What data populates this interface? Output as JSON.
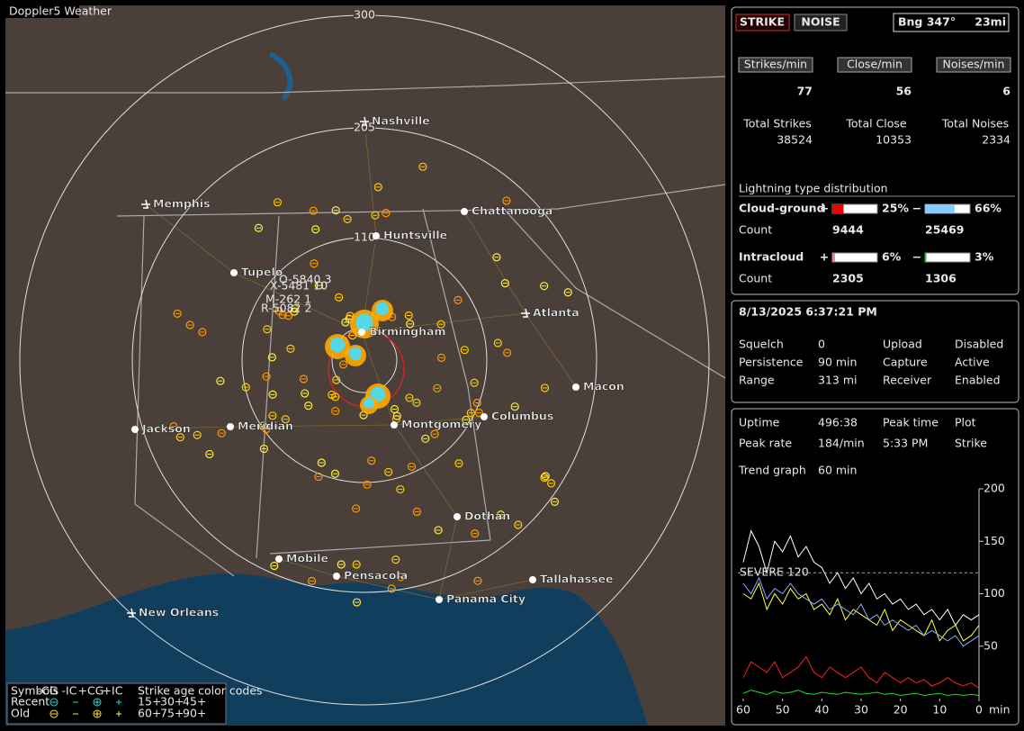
{
  "map": {
    "badge": "Doppler5 Weather",
    "ring_labels": [
      "300",
      "205",
      "110"
    ],
    "cities": [
      {
        "name": "Nashville",
        "airport": true
      },
      {
        "name": "Memphis",
        "airport": true
      },
      {
        "name": "Chattanooga",
        "airport": false
      },
      {
        "name": "Huntsville",
        "airport": false
      },
      {
        "name": "Tupelo",
        "airport": false
      },
      {
        "name": "Atlanta",
        "airport": true
      },
      {
        "name": "Birmingham",
        "airport": false
      },
      {
        "name": "Macon",
        "airport": false
      },
      {
        "name": "Columbus",
        "airport": false
      },
      {
        "name": "Jackson",
        "airport": false
      },
      {
        "name": "Meridian",
        "airport": false
      },
      {
        "name": "Montgomery",
        "airport": false
      },
      {
        "name": "Dothan",
        "airport": false
      },
      {
        "name": "Mobile",
        "airport": false
      },
      {
        "name": "Pensacola",
        "airport": false
      },
      {
        "name": "Tallahassee",
        "airport": false
      },
      {
        "name": "Panama City",
        "airport": false
      },
      {
        "name": "New Orleans",
        "airport": true
      }
    ],
    "cell_labels": [
      "O-5840 3",
      "X-5481 10",
      "M-262 1",
      "R-5082 2"
    ],
    "legend": {
      "symbols": "Symbols",
      "types": [
        "-CG",
        "-IC",
        "+CG",
        "+IC"
      ],
      "age_title": "Strike age color codes",
      "recent": "Recent",
      "old": "Old",
      "recent_ages": [
        "15+",
        "30+",
        "45+"
      ],
      "old_ages": [
        "60+",
        "75+",
        "90+"
      ],
      "recent_colors": [
        "#ffff66",
        "#ffcc00",
        "#ff9900"
      ],
      "old_colors": [
        "#ff8800",
        "#ff6600",
        "#ff4444"
      ]
    }
  },
  "status": {
    "strike_button": "STRIKE",
    "noise_button": "NOISE",
    "bearing": "Bng 347°",
    "distance": "23mi",
    "rates": [
      {
        "label": "Strikes/min",
        "value": "77",
        "total_label": "Total Strikes",
        "total": "38524"
      },
      {
        "label": "Close/min",
        "value": "56",
        "total_label": "Total Close",
        "total": "10353"
      },
      {
        "label": "Noises/min",
        "value": "6",
        "total_label": "Total Noises",
        "total": "2334"
      }
    ],
    "distribution": {
      "title": "Lightning type distribution",
      "count_label": "Count",
      "rows": [
        {
          "name": "Cloud-ground",
          "parts": [
            {
              "sign": "+",
              "value": 25,
              "value_label": "25%",
              "color": "#ee0000",
              "count": "9444"
            },
            {
              "sign": "−",
              "value": 66,
              "value_label": "66%",
              "color": "#88ccff",
              "count": "25469"
            }
          ]
        },
        {
          "name": "Intracloud",
          "parts": [
            {
              "sign": "+",
              "value": 6,
              "value_label": "6%",
              "color": "#ff77aa",
              "count": "2305"
            },
            {
              "sign": "−",
              "value": 3,
              "value_label": "3%",
              "color": "#22cc22",
              "count": "1306"
            }
          ]
        }
      ]
    }
  },
  "settings": {
    "datetime": "8/13/2025 6:37:21 PM",
    "rows": [
      {
        "label": "Squelch",
        "value": "0",
        "label2": "Upload",
        "value2": "Disabled"
      },
      {
        "label": "Persistence",
        "value": "90 min",
        "label2": "Capture",
        "value2": "Active"
      },
      {
        "label": "Range",
        "value": "313 mi",
        "label2": "Receiver",
        "value2": "Enabled"
      }
    ]
  },
  "stats": {
    "rows": [
      {
        "label": "Uptime",
        "value": "496:38",
        "label2": "Peak time",
        "value2": "Plot"
      },
      {
        "label": "Peak rate",
        "value": "184/min",
        "label2": "5:33 PM",
        "value2": "Strike"
      },
      {
        "label": "Trend graph",
        "value": "60 min"
      }
    ]
  },
  "trend": {
    "type": "line",
    "x": [
      60,
      58,
      56,
      54,
      52,
      50,
      48,
      46,
      44,
      42,
      40,
      38,
      36,
      34,
      32,
      30,
      28,
      26,
      24,
      22,
      20,
      18,
      16,
      14,
      12,
      10,
      8,
      6,
      4,
      2,
      0
    ],
    "xlim": [
      60,
      0
    ],
    "xticks": [
      60,
      50,
      40,
      30,
      20,
      10,
      0
    ],
    "x_unit": "min",
    "ylim": [
      0,
      200
    ],
    "yticks": [
      50,
      100,
      150,
      200
    ],
    "threshold": {
      "value": 120,
      "label": "SEVERE 120"
    },
    "series": [
      {
        "color": "#ffffff",
        "values": [
          130,
          160,
          145,
          120,
          150,
          140,
          155,
          135,
          145,
          130,
          125,
          110,
          120,
          105,
          115,
          100,
          110,
          95,
          100,
          90,
          95,
          85,
          90,
          80,
          85,
          75,
          85,
          70,
          80,
          75,
          80
        ]
      },
      {
        "color": "#ffff44",
        "values": [
          100,
          95,
          110,
          85,
          100,
          90,
          105,
          95,
          100,
          85,
          90,
          80,
          95,
          75,
          85,
          80,
          75,
          70,
          85,
          65,
          75,
          70,
          65,
          60,
          75,
          55,
          65,
          70,
          55,
          60,
          70
        ]
      },
      {
        "color": "#88aaff",
        "values": [
          110,
          100,
          115,
          95,
          105,
          100,
          110,
          100,
          95,
          90,
          95,
          85,
          90,
          85,
          80,
          90,
          75,
          80,
          70,
          75,
          70,
          65,
          70,
          60,
          65,
          60,
          55,
          60,
          50,
          55,
          60
        ]
      },
      {
        "color": "#ff2222",
        "values": [
          20,
          35,
          30,
          25,
          35,
          20,
          25,
          30,
          40,
          25,
          20,
          30,
          25,
          20,
          25,
          30,
          20,
          15,
          25,
          20,
          15,
          20,
          15,
          18,
          12,
          15,
          20,
          15,
          12,
          15,
          10
        ]
      },
      {
        "color": "#22dd22",
        "values": [
          5,
          8,
          6,
          4,
          7,
          5,
          6,
          8,
          5,
          4,
          6,
          5,
          4,
          6,
          5,
          4,
          5,
          6,
          4,
          5,
          3,
          4,
          5,
          3,
          4,
          5,
          3,
          4,
          3,
          4,
          3
        ]
      }
    ]
  }
}
